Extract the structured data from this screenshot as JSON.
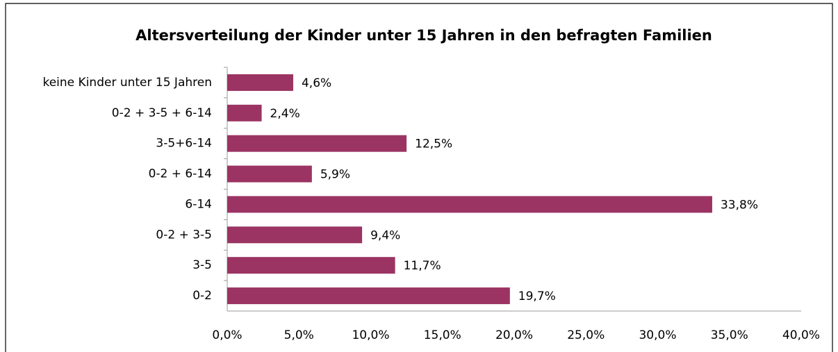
{
  "chart_data": {
    "type": "hbar",
    "title": "Altersverteilung der Kinder unter 15 Jahren in den befragten Familien",
    "categories": [
      "keine Kinder unter 15 Jahren",
      "0-2 + 3-5 + 6-14",
      "3-5+6-14",
      "0-2 + 6-14",
      "6-14",
      "0-2 + 3-5",
      "3-5",
      "0-2"
    ],
    "values": [
      4.6,
      2.4,
      12.5,
      5.9,
      33.8,
      9.4,
      11.7,
      19.7
    ],
    "value_labels": [
      "4,6%",
      "2,4%",
      "12,5%",
      "5,9%",
      "33,8%",
      "9,4%",
      "11,7%",
      "19,7%"
    ],
    "color": "#9b3463",
    "xlim": [
      0,
      40
    ],
    "xticks": [
      {
        "value": 0,
        "label": "0,0%"
      },
      {
        "value": 5,
        "label": "5,0%"
      },
      {
        "value": 10,
        "label": "10,0%"
      },
      {
        "value": 15,
        "label": "15,0%"
      },
      {
        "value": 20,
        "label": "20,0%"
      },
      {
        "value": 25,
        "label": "25,0%"
      },
      {
        "value": 30,
        "label": "30,0%"
      },
      {
        "value": 35,
        "label": "35,0%"
      },
      {
        "value": 40,
        "label": "40,0%"
      }
    ],
    "grid": false
  }
}
